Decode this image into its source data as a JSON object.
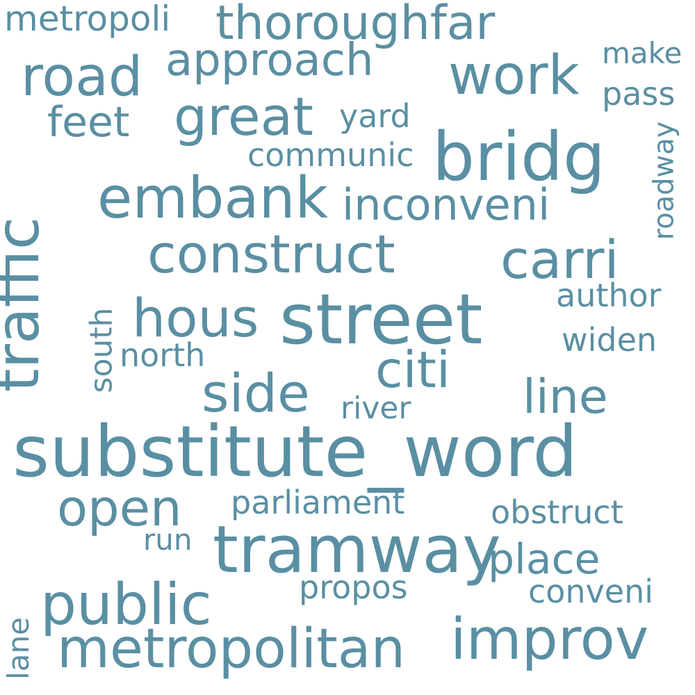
{
  "cloud": {
    "color": "#5a8fa3",
    "background": "#ffffff",
    "words": {
      "substitute_word": "substitute_word",
      "street": "street",
      "bridg": "bridg",
      "tramway": "tramway",
      "traffic": "traffic",
      "embank": "embank",
      "public": "public",
      "metropolitan": "metropolitan",
      "improv": "improv",
      "construct": "construct",
      "road": "road",
      "work": "work",
      "great": "great",
      "thoroughfar": "thoroughfar",
      "carri": "carri",
      "hous": "hous",
      "side": "side",
      "citi": "citi",
      "open": "open",
      "approach": "approach",
      "line": "line",
      "place": "place",
      "inconveni": "inconveni",
      "feet": "feet",
      "metropoli": "metropoli",
      "parliament": "parliament",
      "communic": "communic",
      "conveni": "conveni",
      "obstruct": "obstruct",
      "propos": "propos",
      "author": "author",
      "widen": "widen",
      "north": "north",
      "river": "river",
      "yard": "yard",
      "pass": "pass",
      "make": "make",
      "run": "run",
      "roadway": "roadway",
      "south": "south",
      "lane": "lane"
    }
  }
}
